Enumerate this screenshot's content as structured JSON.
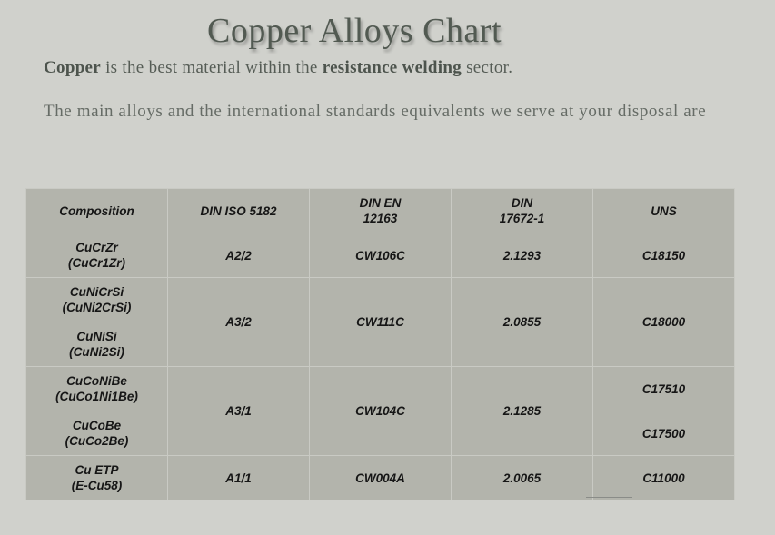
{
  "title": "Copper Alloys Chart",
  "intro": {
    "bold1": "Copper",
    "text1": " is the best material within the ",
    "bold2": "resistance welding",
    "text2": " sector."
  },
  "description": "The main alloys and the international standards equivalents we serve at your disposal are",
  "table": {
    "headers": [
      [
        "Composition"
      ],
      [
        "DIN ISO 5182"
      ],
      [
        "DIN EN",
        "12163"
      ],
      [
        "DIN",
        "17672-1"
      ],
      [
        "UNS"
      ]
    ],
    "rows": [
      {
        "composition": [
          "CuCrZr",
          "(CuCr1Zr)"
        ],
        "din_iso": "A2/2",
        "din_en": "CW106C",
        "din": "2.1293",
        "uns": "C18150"
      },
      {
        "composition": [
          "CuNiCrSi",
          "(CuNi2CrSi)"
        ],
        "din_iso": "A3/2",
        "din_en": "CW111C",
        "din": "2.0855",
        "uns": "C18000"
      },
      {
        "composition": [
          "CuNiSi",
          "(CuNi2Si)"
        ]
      },
      {
        "composition": [
          "CuCoNiBe",
          "(CuCo1Ni1Be)"
        ],
        "din_iso": "A3/1",
        "din_en": "CW104C",
        "din": "2.1285",
        "uns": "C17510"
      },
      {
        "composition": [
          "CuCoBe",
          "(CuCo2Be)"
        ],
        "uns": "C17500"
      },
      {
        "composition": [
          "Cu ETP",
          "(E-Cu58)"
        ],
        "din_iso": "A1/1",
        "din_en": "CW004A",
        "din": "2.0065",
        "uns": "C11000"
      }
    ]
  }
}
